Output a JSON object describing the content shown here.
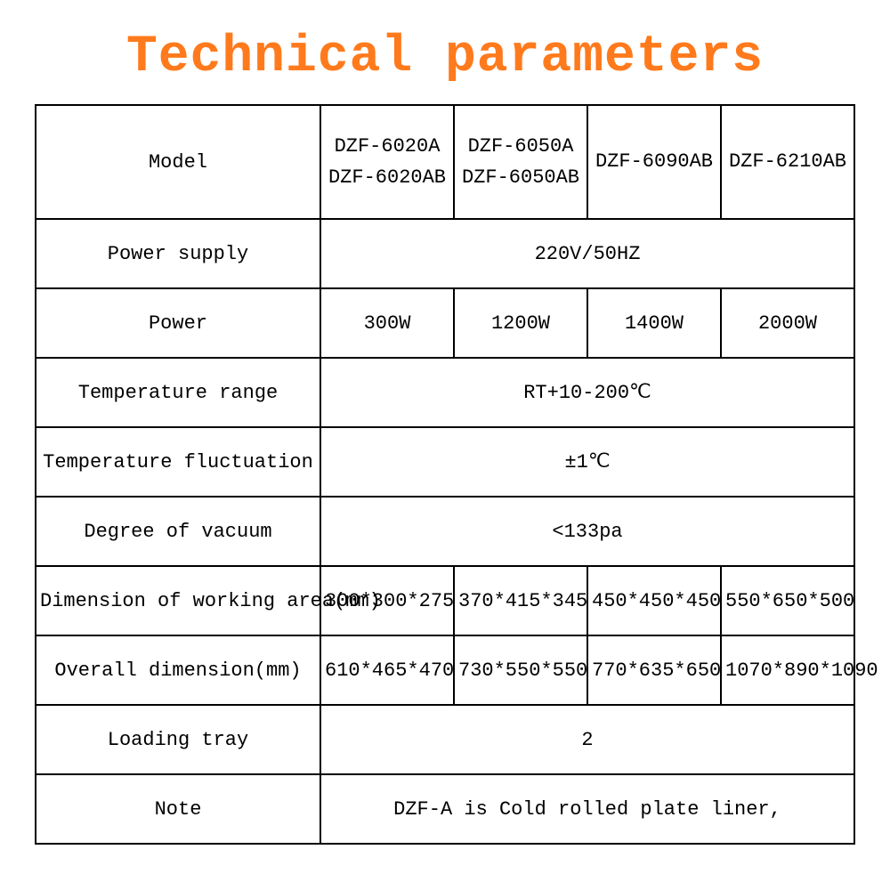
{
  "page": {
    "title": "Technical parameters",
    "title_color": "#ff7a1c",
    "title_fontsize": 58,
    "background_color": "#ffffff",
    "text_color": "#000000",
    "border_color": "#000000",
    "font_family": "SimSun / monospace",
    "cell_fontsize": 22
  },
  "table": {
    "type": "table",
    "label_column_width": 320,
    "data_column_width": 150,
    "header": {
      "model_label": "Model",
      "columns": [
        {
          "line1": "DZF-6020A",
          "line2": "DZF-6020AB"
        },
        {
          "line1": "DZF-6050A",
          "line2": "DZF-6050AB"
        },
        {
          "line1": "DZF-6090AB",
          "line2": ""
        },
        {
          "line1": "DZF-6210AB",
          "line2": ""
        }
      ]
    },
    "rows": [
      {
        "label": "Power supply",
        "span": true,
        "value": "220V/50HZ"
      },
      {
        "label": "Power",
        "span": false,
        "values": [
          "300W",
          "1200W",
          "1400W",
          "2000W"
        ]
      },
      {
        "label": "Temperature range",
        "span": true,
        "value": "RT+10-200℃"
      },
      {
        "label": "Temperature fluctuation",
        "span": true,
        "value": "±1℃"
      },
      {
        "label": "Degree of vacuum",
        "span": true,
        "value": "<133pa"
      },
      {
        "label": "Dimension of working area(mm)",
        "span": false,
        "values": [
          "300*300*275",
          "370*415*345",
          "450*450*450",
          "550*650*500"
        ]
      },
      {
        "label": "Overall dimension(mm)",
        "span": false,
        "values": [
          "610*465*470",
          "730*550*550",
          "770*635*650",
          "1070*890*1090"
        ]
      },
      {
        "label": "Loading tray",
        "span": true,
        "value": "2"
      },
      {
        "label": "Note",
        "span": true,
        "value": "DZF-A is Cold rolled plate liner,"
      }
    ]
  }
}
